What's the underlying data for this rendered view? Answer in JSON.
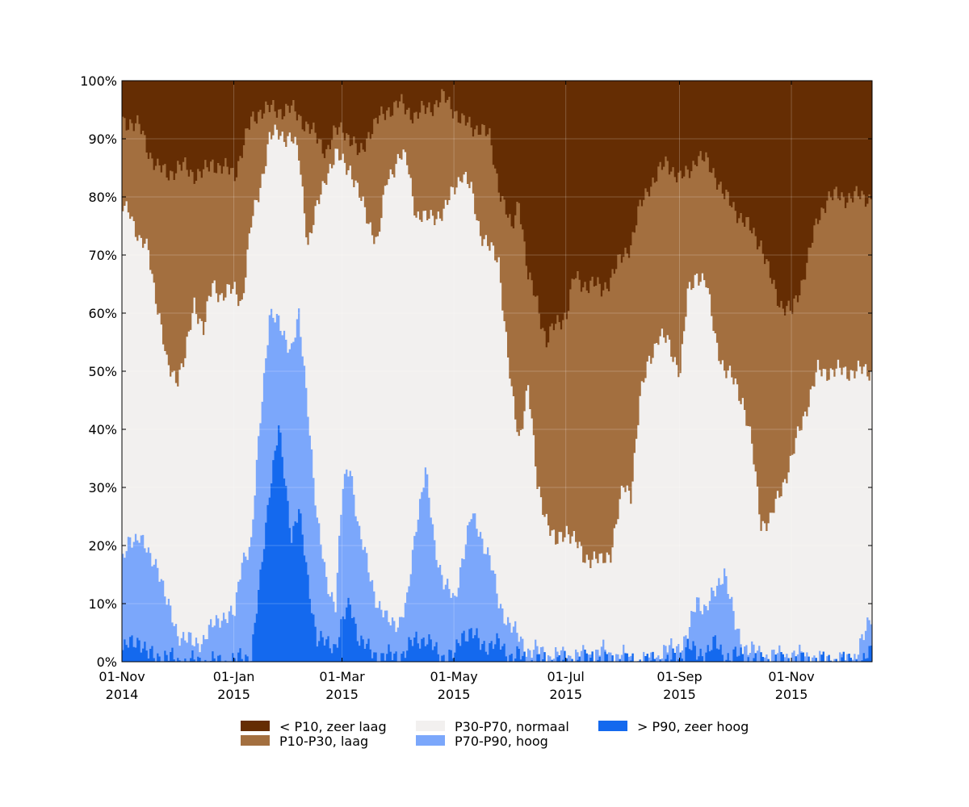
{
  "chart_data": {
    "type": "area",
    "stacked": true,
    "percent_stacked": true,
    "x_start": "2014-11-01",
    "x_end": "2015-12-15",
    "ylim": [
      0,
      100
    ],
    "yticks": [
      0,
      10,
      20,
      30,
      40,
      50,
      60,
      70,
      80,
      90,
      100
    ],
    "ytick_labels": [
      "0%",
      "10%",
      "20%",
      "30%",
      "40%",
      "50%",
      "60%",
      "70%",
      "80%",
      "90%",
      "100%"
    ],
    "grid": true,
    "xticks": [
      {
        "date": "2014-11-01",
        "line1": "01-Nov",
        "line2": "2014"
      },
      {
        "date": "2015-01-01",
        "line1": "01-Jan",
        "line2": "2015"
      },
      {
        "date": "2015-03-01",
        "line1": "01-Mar",
        "line2": "2015"
      },
      {
        "date": "2015-05-01",
        "line1": "01-May",
        "line2": "2015"
      },
      {
        "date": "2015-07-01",
        "line1": "01-Jul",
        "line2": "2015"
      },
      {
        "date": "2015-09-01",
        "line1": "01-Sep",
        "line2": "2015"
      },
      {
        "date": "2015-11-01",
        "line1": "01-Nov",
        "line2": "2015"
      }
    ],
    "legend_position": "bottom-center",
    "series": [
      {
        "name": "> P90, zeer hoog",
        "color": "#1469ee"
      },
      {
        "name": "P70-P90, hoog",
        "color": "#7ba7fb"
      },
      {
        "name": "P30-P70, normaal",
        "color": "#f2f0ef"
      },
      {
        "name": "P10-P30, laag",
        "color": "#a36f3f"
      },
      {
        "name": "< P10, zeer laag",
        "color": "#652d03"
      }
    ],
    "cumulative_upper_bounds": {
      "dates": [
        "2014-11-01",
        "2014-11-05",
        "2014-11-10",
        "2014-11-15",
        "2014-11-20",
        "2014-11-25",
        "2014-12-01",
        "2014-12-05",
        "2014-12-10",
        "2014-12-15",
        "2014-12-20",
        "2014-12-25",
        "2015-01-01",
        "2015-01-05",
        "2015-01-10",
        "2015-01-15",
        "2015-01-20",
        "2015-01-25",
        "2015-02-01",
        "2015-02-05",
        "2015-02-10",
        "2015-02-15",
        "2015-02-20",
        "2015-02-25",
        "2015-03-01",
        "2015-03-05",
        "2015-03-10",
        "2015-03-15",
        "2015-03-20",
        "2015-03-25",
        "2015-04-01",
        "2015-04-05",
        "2015-04-10",
        "2015-04-15",
        "2015-04-20",
        "2015-04-25",
        "2015-05-01",
        "2015-05-05",
        "2015-05-10",
        "2015-05-15",
        "2015-05-20",
        "2015-05-25",
        "2015-06-01",
        "2015-06-05",
        "2015-06-10",
        "2015-06-15",
        "2015-06-20",
        "2015-06-25",
        "2015-07-01",
        "2015-07-05",
        "2015-07-10",
        "2015-07-15",
        "2015-07-20",
        "2015-07-25",
        "2015-08-01",
        "2015-08-05",
        "2015-08-10",
        "2015-08-15",
        "2015-08-20",
        "2015-08-25",
        "2015-09-01",
        "2015-09-05",
        "2015-09-10",
        "2015-09-15",
        "2015-09-20",
        "2015-09-25",
        "2015-10-01",
        "2015-10-05",
        "2015-10-10",
        "2015-10-15",
        "2015-10-20",
        "2015-10-25",
        "2015-11-01",
        "2015-11-05",
        "2015-11-10",
        "2015-11-15",
        "2015-11-20",
        "2015-11-25",
        "2015-12-01",
        "2015-12-05",
        "2015-12-10",
        "2015-12-15"
      ],
      "gt_p90": [
        2,
        3,
        4,
        1,
        1,
        1,
        0,
        0,
        0,
        0,
        0,
        0,
        0,
        1,
        1,
        14,
        30,
        40,
        22,
        26,
        14,
        4,
        3,
        3,
        7,
        10,
        4,
        2,
        1,
        1,
        1,
        2,
        4,
        4,
        2,
        1,
        1,
        5,
        5,
        3,
        3,
        3,
        1,
        1,
        0,
        0,
        0,
        0,
        0,
        0,
        0,
        1,
        0,
        0,
        0,
        0,
        0,
        0,
        0,
        0,
        1,
        3,
        1,
        2,
        3,
        1,
        1,
        1,
        0,
        0,
        0,
        0,
        0,
        0,
        0,
        0,
        0,
        0,
        0,
        0,
        0,
        2
      ],
      "p70_p90": [
        17,
        21,
        22,
        18,
        17,
        10,
        5,
        4,
        3,
        4,
        6,
        8,
        8,
        18,
        20,
        42,
        60,
        58,
        54,
        59,
        44,
        24,
        14,
        10,
        30,
        34,
        22,
        16,
        10,
        7,
        7,
        10,
        24,
        33,
        20,
        14,
        10,
        18,
        25,
        22,
        18,
        10,
        6,
        4,
        2,
        2,
        1,
        1,
        1,
        1,
        1,
        1,
        2,
        1,
        1,
        0,
        0,
        0,
        1,
        2,
        3,
        4,
        11,
        9,
        12,
        16,
        6,
        3,
        2,
        1,
        1,
        1,
        1,
        1,
        1,
        0,
        0,
        0,
        0,
        1,
        4,
        9
      ],
      "p30_p70": [
        78,
        78,
        72,
        71,
        61,
        51,
        49,
        52,
        62,
        57,
        65,
        63,
        64,
        62,
        75,
        82,
        90,
        91,
        90,
        87,
        72,
        78,
        84,
        87,
        86,
        85,
        80,
        76,
        72,
        83,
        87,
        86,
        77,
        76,
        77,
        77,
        82,
        84,
        81,
        74,
        71,
        69,
        46,
        38,
        48,
        30,
        25,
        20,
        23,
        21,
        18,
        18,
        17,
        19,
        30,
        29,
        45,
        52,
        56,
        55,
        50,
        63,
        67,
        65,
        56,
        50,
        48,
        45,
        37,
        24,
        24,
        29,
        35,
        40,
        45,
        50,
        50,
        50,
        50,
        50,
        50,
        50
      ],
      "p10_p30": [
        93,
        93,
        92,
        88,
        85,
        84,
        85,
        85,
        84,
        84,
        86,
        85,
        84,
        88,
        93,
        95,
        95,
        95,
        95,
        94,
        92,
        90,
        88,
        91,
        92,
        90,
        87,
        91,
        93,
        95,
        96,
        95,
        94,
        95,
        96,
        97,
        95,
        93,
        92,
        92,
        90,
        82,
        74,
        80,
        66,
        62,
        55,
        58,
        60,
        66,
        65,
        65,
        64,
        66,
        70,
        72,
        78,
        82,
        84,
        86,
        83,
        84,
        87,
        86,
        84,
        80,
        78,
        76,
        74,
        72,
        66,
        62,
        60,
        64,
        70,
        76,
        80,
        80,
        80,
        80,
        80,
        80
      ]
    }
  },
  "legend": {
    "items": [
      {
        "label": "< P10, zeer laag",
        "color": "#652d03"
      },
      {
        "label": "P10-P30, laag",
        "color": "#a36f3f"
      },
      {
        "label": "P30-P70, normaal",
        "color": "#f2f0ef"
      },
      {
        "label": "P70-P90, hoog",
        "color": "#7ba7fb"
      },
      {
        "label": "> P90, zeer hoog",
        "color": "#1469ee"
      }
    ]
  }
}
